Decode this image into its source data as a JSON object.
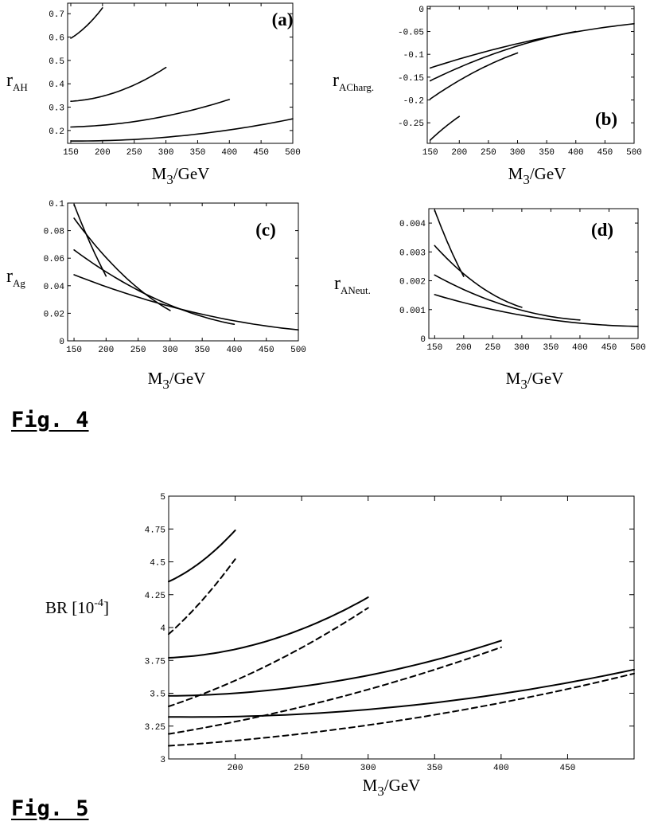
{
  "captions": {
    "fig4": "Fig. 4",
    "fig5": "Fig. 5"
  },
  "chart_data": [
    {
      "id": "a",
      "type": "line",
      "panel_label": "(a)",
      "xlabel": {
        "main": "M",
        "sub": "3",
        "rest": "/GeV"
      },
      "ylabel": {
        "main": "r",
        "sub": "AH"
      },
      "xlim": [
        145,
        500
      ],
      "ylim": [
        0.145,
        0.745
      ],
      "xticks": [
        150,
        200,
        250,
        300,
        350,
        400,
        450,
        500
      ],
      "yticks": [
        0.2,
        0.3,
        0.4,
        0.5,
        0.6,
        0.7
      ],
      "ytick_labels": [
        "0.2",
        "0.3",
        "0.4",
        "0.5",
        "0.6",
        "0.7"
      ],
      "series": [
        {
          "x": [
            150,
            200
          ],
          "y": [
            0.595,
            0.725
          ],
          "curv": 0.012,
          "style": "solid"
        },
        {
          "x": [
            150,
            300
          ],
          "y": [
            0.325,
            0.47
          ],
          "curv": 0.03,
          "style": "solid"
        },
        {
          "x": [
            150,
            400
          ],
          "y": [
            0.215,
            0.333
          ],
          "curv": 0.025,
          "style": "solid"
        },
        {
          "x": [
            150,
            500
          ],
          "y": [
            0.155,
            0.25
          ],
          "curv": 0.025,
          "style": "solid"
        }
      ]
    },
    {
      "id": "b",
      "type": "line",
      "panel_label": "(b)",
      "xlabel": {
        "main": "M",
        "sub": "3",
        "rest": "/GeV"
      },
      "ylabel": {
        "main": "r",
        "sub": "ACharg."
      },
      "xlim": [
        145,
        500
      ],
      "ylim": [
        -0.295,
        0.005
      ],
      "xticks": [
        150,
        200,
        250,
        300,
        350,
        400,
        450,
        500
      ],
      "yticks": [
        0,
        -0.05,
        -0.1,
        -0.15,
        -0.2,
        -0.25
      ],
      "ytick_labels": [
        "0",
        "-0.05",
        "-0.1",
        "-0.15",
        "-0.2",
        "-0.25"
      ],
      "series": [
        {
          "x": [
            150,
            200
          ],
          "y": [
            -0.288,
            -0.236
          ],
          "curv": -0.002,
          "style": "solid"
        },
        {
          "x": [
            150,
            300
          ],
          "y": [
            -0.198,
            -0.097
          ],
          "curv": -0.008,
          "style": "solid"
        },
        {
          "x": [
            150,
            400
          ],
          "y": [
            -0.158,
            -0.05
          ],
          "curv": -0.012,
          "style": "solid"
        },
        {
          "x": [
            150,
            500
          ],
          "y": [
            -0.13,
            -0.033
          ],
          "curv": -0.012,
          "style": "solid"
        }
      ]
    },
    {
      "id": "c",
      "type": "line",
      "panel_label": "(c)",
      "xlabel": {
        "main": "M",
        "sub": "3",
        "rest": "/GeV"
      },
      "ylabel": {
        "main": "r",
        "sub": "Ag"
      },
      "xlim": [
        140,
        500
      ],
      "ylim": [
        0,
        0.1
      ],
      "xticks": [
        150,
        200,
        250,
        300,
        350,
        400,
        450,
        500
      ],
      "yticks": [
        0,
        0.02,
        0.04,
        0.06,
        0.08,
        0.1
      ],
      "ytick_labels": [
        "0",
        "0.02",
        "0.04",
        "0.06",
        "0.08",
        "0.1"
      ],
      "series": [
        {
          "x": [
            150,
            200
          ],
          "y": [
            0.099,
            0.047
          ],
          "curv": 0.002,
          "style": "solid"
        },
        {
          "x": [
            150,
            300
          ],
          "y": [
            0.089,
            0.022
          ],
          "curv": 0.007,
          "style": "solid"
        },
        {
          "x": [
            150,
            400
          ],
          "y": [
            0.066,
            0.012
          ],
          "curv": 0.008,
          "style": "solid"
        },
        {
          "x": [
            150,
            500
          ],
          "y": [
            0.048,
            0.008
          ],
          "curv": 0.006,
          "style": "solid"
        }
      ]
    },
    {
      "id": "d",
      "type": "line",
      "panel_label": "(d)",
      "xlabel": {
        "main": "M",
        "sub": "3",
        "rest": "/GeV"
      },
      "ylabel": {
        "main": "r",
        "sub": "ANeut."
      },
      "xlim": [
        140,
        500
      ],
      "ylim": [
        0,
        0.0045
      ],
      "xticks": [
        150,
        200,
        250,
        300,
        350,
        400,
        450,
        500
      ],
      "yticks": [
        0,
        0.001,
        0.002,
        0.003,
        0.004
      ],
      "ytick_labels": [
        "0",
        "0.001",
        "0.002",
        "0.003",
        "0.004"
      ],
      "series": [
        {
          "x": [
            150,
            200
          ],
          "y": [
            0.00445,
            0.00215
          ],
          "curv": 0.0001,
          "style": "solid"
        },
        {
          "x": [
            150,
            300
          ],
          "y": [
            0.00322,
            0.00108
          ],
          "curv": 0.0003,
          "style": "solid"
        },
        {
          "x": [
            150,
            400
          ],
          "y": [
            0.0022,
            0.00064
          ],
          "curv": 0.0003,
          "style": "solid"
        },
        {
          "x": [
            150,
            500
          ],
          "y": [
            0.00152,
            0.00042
          ],
          "curv": 0.00025,
          "style": "solid"
        }
      ]
    },
    {
      "id": "fig5",
      "type": "line",
      "xlabel": {
        "main": "M",
        "sub": "3",
        "rest": "/GeV"
      },
      "ylabel": {
        "main": "BR [10",
        "sup": "-4",
        "rest": "]"
      },
      "xlim": [
        150,
        500
      ],
      "ylim": [
        3,
        5
      ],
      "xticks": [
        200,
        250,
        300,
        350,
        400,
        450
      ],
      "yticks": [
        3,
        3.25,
        3.5,
        3.75,
        4,
        4.25,
        4.5,
        4.75,
        5
      ],
      "ytick_labels": [
        "3",
        "3.25",
        "3.5",
        "3.75",
        "4",
        "4.25",
        "4.5",
        "4.75",
        "5"
      ],
      "series": [
        {
          "x": [
            150,
            200
          ],
          "y": [
            4.35,
            4.74
          ],
          "curv": 0.04,
          "style": "solid"
        },
        {
          "x": [
            150,
            200
          ],
          "y": [
            3.95,
            4.52
          ],
          "curv": 0.03,
          "style": "dashed"
        },
        {
          "x": [
            150,
            300
          ],
          "y": [
            3.77,
            4.23
          ],
          "curv": 0.1,
          "style": "solid"
        },
        {
          "x": [
            150,
            300
          ],
          "y": [
            3.4,
            4.15
          ],
          "curv": 0.06,
          "style": "dashed"
        },
        {
          "x": [
            150,
            400
          ],
          "y": [
            3.48,
            3.9
          ],
          "curv": 0.1,
          "style": "solid"
        },
        {
          "x": [
            150,
            400
          ],
          "y": [
            3.19,
            3.85
          ],
          "curv": 0.06,
          "style": "dashed"
        },
        {
          "x": [
            150,
            500
          ],
          "y": [
            3.32,
            3.68
          ],
          "curv": 0.1,
          "style": "solid"
        },
        {
          "x": [
            150,
            500
          ],
          "y": [
            3.1,
            3.65
          ],
          "curv": 0.08,
          "style": "dashed"
        }
      ]
    }
  ]
}
